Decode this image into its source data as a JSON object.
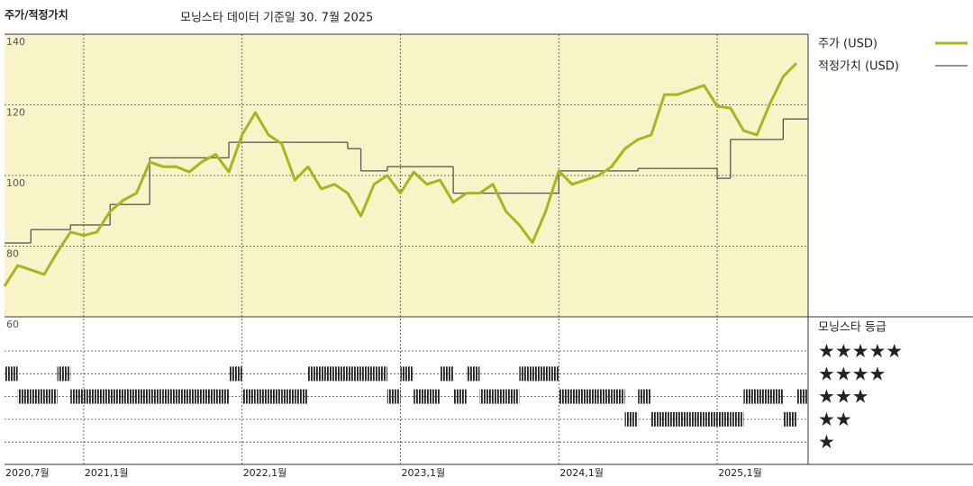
{
  "chart_data": {
    "type": "line",
    "title": "주가/적정가치",
    "subtitle": "모닝스타 데이터 기준일 30. 7월 2025",
    "x": [
      "2020-07",
      "2020-08",
      "2020-09",
      "2020-10",
      "2020-11",
      "2020-12",
      "2021-01",
      "2021-02",
      "2021-03",
      "2021-04",
      "2021-05",
      "2021-06",
      "2021-07",
      "2021-08",
      "2021-09",
      "2021-10",
      "2021-11",
      "2021-12",
      "2022-01",
      "2022-02",
      "2022-03",
      "2022-04",
      "2022-05",
      "2022-06",
      "2022-07",
      "2022-08",
      "2022-09",
      "2022-10",
      "2022-11",
      "2022-12",
      "2023-01",
      "2023-02",
      "2023-03",
      "2023-04",
      "2023-05",
      "2023-06",
      "2023-07",
      "2023-08",
      "2023-09",
      "2023-10",
      "2023-11",
      "2023-12",
      "2024-01",
      "2024-02",
      "2024-03",
      "2024-04",
      "2024-05",
      "2024-06",
      "2024-07",
      "2024-08",
      "2024-09",
      "2024-10",
      "2024-11",
      "2024-12",
      "2025-01",
      "2025-02",
      "2025-03",
      "2025-04",
      "2025-05",
      "2025-06",
      "2025-07"
    ],
    "series": [
      {
        "name": "주가 (USD)",
        "color": "#a8b421",
        "values": [
          68.7,
          74.5,
          73.3,
          72,
          78.3,
          84,
          83,
          84,
          89.8,
          93,
          95,
          103.8,
          102.5,
          102.5,
          101,
          104,
          106,
          101,
          111.5,
          117.8,
          111.5,
          109,
          98.7,
          102.5,
          96.2,
          97.5,
          95,
          88.5,
          97.5,
          100,
          95,
          101,
          97.5,
          98.7,
          92.4,
          95,
          95,
          97.5,
          89.8,
          86,
          81,
          89.8,
          101.3,
          97.5,
          98.7,
          100,
          102.5,
          107.6,
          110.2,
          111.5,
          122.9,
          122.9,
          124.2,
          125.5,
          119.6,
          119.1,
          112.7,
          111.5,
          120.4,
          128,
          131.8
        ]
      },
      {
        "name": "적정가치 (USD)",
        "color": "#555555",
        "values": [
          80.9,
          80.9,
          84.7,
          84.7,
          84.7,
          86,
          86,
          86,
          91.8,
          91.8,
          91.8,
          105,
          105,
          105,
          105,
          105,
          105,
          109.4,
          109.4,
          109.4,
          109.4,
          109.4,
          109.4,
          109.4,
          109.4,
          109.4,
          107.6,
          101.3,
          101.3,
          102.5,
          102.5,
          102.5,
          102.5,
          102.5,
          95,
          95,
          95,
          95,
          95,
          95,
          95,
          95,
          101.3,
          101.3,
          101.3,
          101.3,
          101.3,
          101.3,
          102,
          102,
          102,
          102,
          102,
          102,
          99.2,
          110.2,
          110.2,
          110.2,
          110.2,
          116,
          116
        ]
      }
    ],
    "ylim": [
      60,
      140
    ],
    "yticks": [
      60,
      80,
      100,
      120,
      140
    ],
    "xticks": [
      {
        "value": "2020-07",
        "label": "2020,7월"
      },
      {
        "value": "2021-01",
        "label": "2021,1월"
      },
      {
        "value": "2022-01",
        "label": "2022,1월"
      },
      {
        "value": "2023-01",
        "label": "2023,1월"
      },
      {
        "value": "2024-01",
        "label": "2024,1월"
      },
      {
        "value": "2025-01",
        "label": "2025,1월"
      }
    ],
    "grid": true,
    "background": "#f8f4c8",
    "ratings": {
      "name": "모닝스타 등급",
      "color": "#222222",
      "levels": [
        5,
        4,
        3,
        2,
        1
      ],
      "level_labels": [
        "★★★★★",
        "★★★★",
        "★★★",
        "★★",
        "★"
      ],
      "values": [
        4,
        3,
        3,
        3,
        4,
        3,
        3,
        3,
        3,
        3,
        3,
        3,
        3,
        3,
        3,
        3,
        3,
        4,
        3,
        3,
        3,
        3,
        3,
        4,
        4,
        4,
        4,
        4,
        4,
        3,
        4,
        3,
        3,
        4,
        3,
        4,
        3,
        3,
        3,
        4,
        4,
        4,
        3,
        3,
        3,
        3,
        3,
        2,
        3,
        2,
        2,
        2,
        2,
        2,
        2,
        2,
        3,
        3,
        3,
        2,
        3
      ]
    }
  }
}
